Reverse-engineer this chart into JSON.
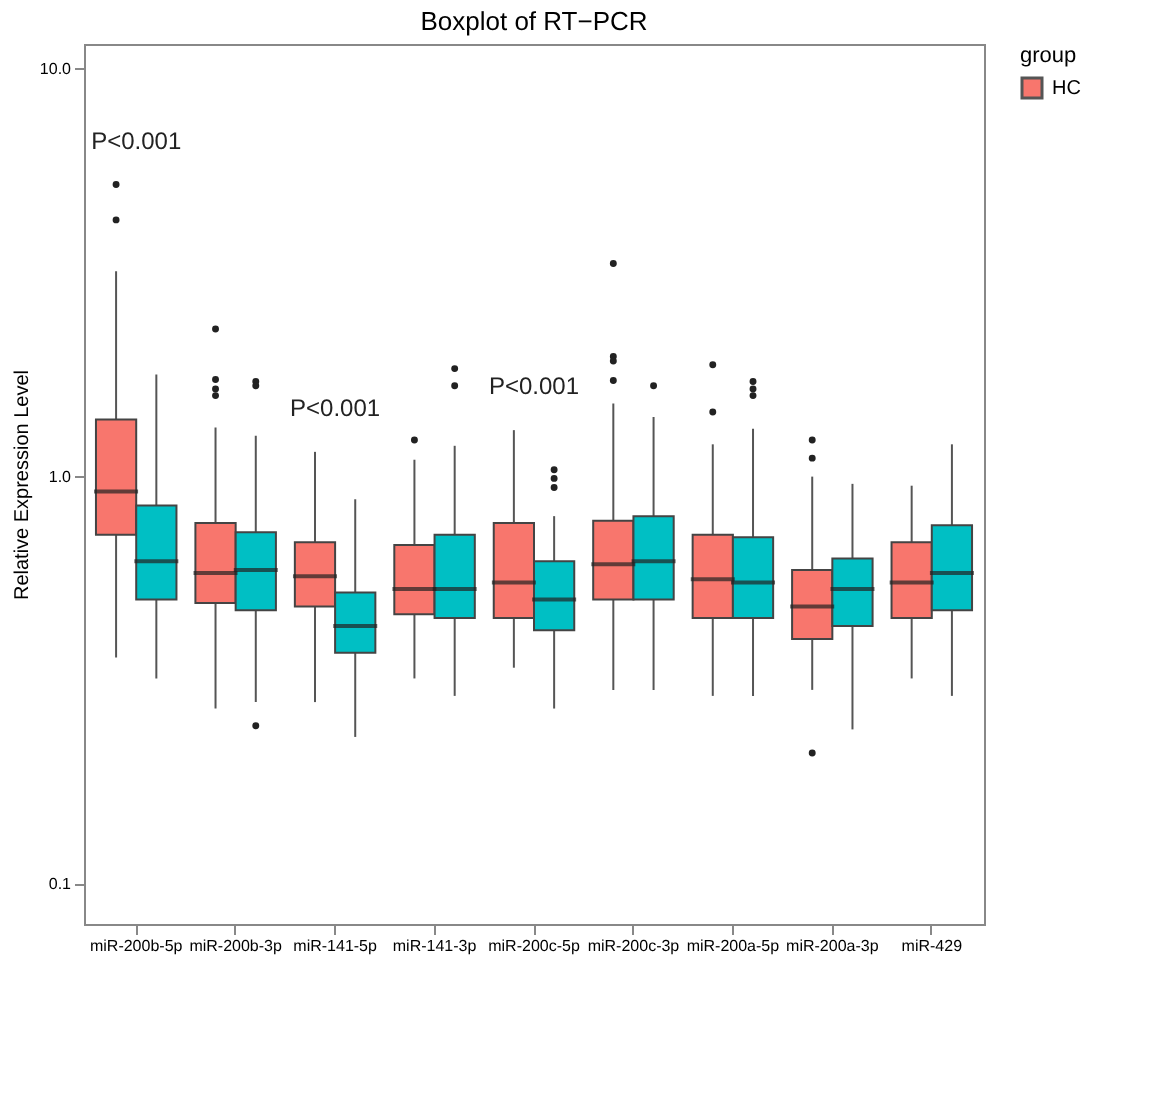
{
  "chart_data": {
    "type": "box",
    "title": "Boxplot of RT−PCR",
    "ylabel": "Relative Expression Level",
    "legend_title": "group",
    "legend": "top right",
    "log": true,
    "categories": [
      "miR-200b-5p",
      "miR-200b-3p",
      "miR-141-5p",
      "miR-141-3p",
      "miR-200c-5p",
      "miR-200c-3p",
      "miR-200a-5p",
      "miR-200a-3p",
      "miR-429"
    ],
    "ylim": [
      0.08,
      11.5
    ],
    "yticks": [
      0.1,
      {
        "value": 1,
        "label": "1.0"
      },
      {
        "value": 10,
        "label": "10.0"
      }
    ],
    "series": [
      {
        "name": "HC",
        "color": "#f8766d",
        "boxes": [
          {
            "low": 0.36,
            "q1": 0.72,
            "median": 0.92,
            "q3": 1.38,
            "high": 3.19,
            "outliers": [
              5.2,
              4.26
            ]
          },
          {
            "low": 0.27,
            "q1": 0.49,
            "median": 0.58,
            "q3": 0.77,
            "high": 1.32,
            "outliers": [
              2.3,
              1.73,
              1.64,
              1.58
            ]
          },
          {
            "low": 0.28,
            "q1": 0.48,
            "median": 0.57,
            "q3": 0.69,
            "high": 1.15
          },
          {
            "low": 0.32,
            "q1": 0.46,
            "median": 0.53,
            "q3": 0.68,
            "high": 1.1,
            "outliers": [
              1.23
            ]
          },
          {
            "low": 0.34,
            "q1": 0.45,
            "median": 0.55,
            "q3": 0.77,
            "high": 1.3
          },
          {
            "low": 0.3,
            "q1": 0.5,
            "median": 0.61,
            "q3": 0.78,
            "high": 1.51,
            "outliers": [
              3.33,
              1.97,
              1.92,
              1.72
            ]
          },
          {
            "low": 0.29,
            "q1": 0.45,
            "median": 0.56,
            "q3": 0.72,
            "high": 1.2,
            "outliers": [
              1.88,
              1.44
            ]
          },
          {
            "low": 0.3,
            "q1": 0.4,
            "median": 0.48,
            "q3": 0.59,
            "high": 1.0,
            "outliers": [
              1.23,
              1.11,
              0.21
            ]
          },
          {
            "low": 0.32,
            "q1": 0.45,
            "median": 0.55,
            "q3": 0.69,
            "high": 0.95
          }
        ]
      },
      {
        "color": "#00bfc4",
        "boxes": [
          {
            "low": 0.32,
            "q1": 0.5,
            "median": 0.62,
            "q3": 0.85,
            "high": 1.78
          },
          {
            "low": 0.28,
            "q1": 0.47,
            "median": 0.59,
            "q3": 0.73,
            "high": 1.26,
            "outliers": [
              1.71,
              1.67,
              0.245
            ]
          },
          {
            "low": 0.23,
            "q1": 0.37,
            "median": 0.43,
            "q3": 0.52,
            "high": 0.88
          },
          {
            "low": 0.29,
            "q1": 0.45,
            "median": 0.53,
            "q3": 0.72,
            "high": 1.19,
            "outliers": [
              1.84,
              1.67
            ]
          },
          {
            "low": 0.27,
            "q1": 0.42,
            "median": 0.5,
            "q3": 0.62,
            "high": 0.8,
            "outliers": [
              1.04,
              0.99,
              0.94
            ]
          },
          {
            "low": 0.3,
            "q1": 0.5,
            "median": 0.62,
            "q3": 0.8,
            "high": 1.4,
            "outliers": [
              1.67
            ]
          },
          {
            "low": 0.29,
            "q1": 0.45,
            "median": 0.55,
            "q3": 0.71,
            "high": 1.31,
            "outliers": [
              1.71,
              1.64,
              1.58
            ]
          },
          {
            "low": 0.24,
            "q1": 0.43,
            "median": 0.53,
            "q3": 0.63,
            "high": 0.96
          },
          {
            "low": 0.29,
            "q1": 0.47,
            "median": 0.58,
            "q3": 0.76,
            "high": 1.2
          }
        ]
      }
    ],
    "annotations": [
      "P<0.001",
      "P<0.001",
      "P<0.001"
    ]
  }
}
